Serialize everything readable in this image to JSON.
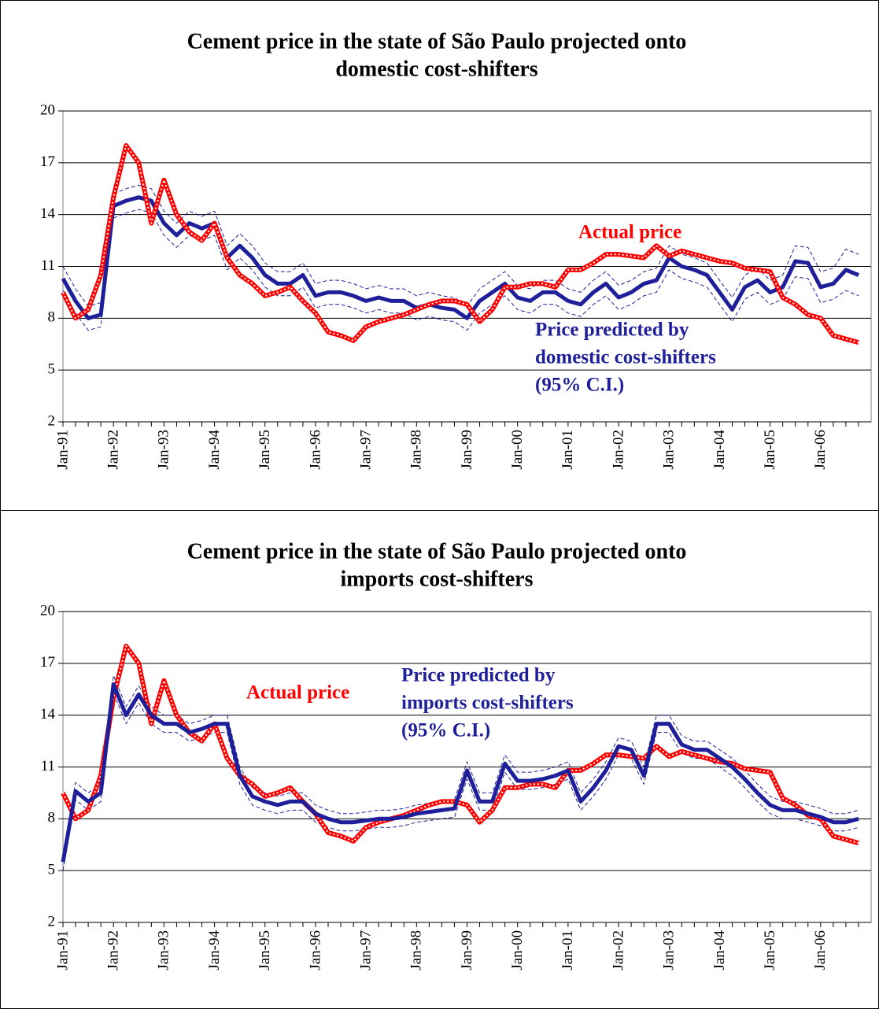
{
  "chart_data": [
    {
      "type": "line",
      "title": [
        "Cement price in the state of São Paulo projected onto",
        "domestic cost-shifters"
      ],
      "categories": [
        "Jan-91",
        null,
        null,
        null,
        "Jan-92",
        null,
        null,
        null,
        "Jan-93",
        null,
        null,
        null,
        "Jan-94",
        null,
        null,
        null,
        "Jan-95",
        null,
        null,
        null,
        "Jan-96",
        null,
        null,
        null,
        "Jan-97",
        null,
        null,
        null,
        "Jan-98",
        null,
        null,
        null,
        "Jan-99",
        null,
        null,
        null,
        "Jan-00",
        null,
        null,
        null,
        "Jan-01",
        null,
        null,
        null,
        "Jan-02",
        null,
        null,
        null,
        "Jan-03",
        null,
        null,
        null,
        "Jan-04",
        null,
        null,
        null,
        "Jan-05",
        null,
        null,
        null,
        "Jan-06",
        null,
        null,
        null
      ],
      "ylim": [
        2,
        20
      ],
      "yticks": [
        2,
        5,
        8,
        11,
        14,
        17,
        20
      ],
      "grid": true,
      "annotations": [
        {
          "lines": [
            "Actual price"
          ],
          "color": "#ff0000"
        },
        {
          "lines": [
            "Price predicted by",
            "domestic cost-shifters",
            "(95% C.I.)"
          ],
          "color": "#1f1f9a"
        }
      ],
      "series": [
        {
          "color": "#1f1f9a",
          "style": "dashed",
          "values": [
            11.0,
            9.7,
            8.7,
            8.9,
            15.2,
            15.5,
            15.7,
            15.5,
            14.2,
            13.5,
            14.2,
            13.9,
            14.2,
            12.2,
            12.9,
            12.2,
            11.2,
            10.7,
            10.7,
            11.2,
            10.0,
            10.2,
            10.2,
            10.0,
            9.7,
            9.9,
            9.7,
            9.7,
            9.3,
            9.5,
            9.3,
            9.2,
            8.7,
            9.7,
            10.2,
            10.7,
            9.9,
            9.7,
            10.2,
            10.2,
            9.7,
            9.5,
            10.2,
            10.7,
            9.9,
            10.2,
            10.7,
            10.9,
            12.2,
            11.7,
            11.5,
            11.2,
            10.2,
            9.2,
            10.5,
            10.9,
            10.2,
            10.5,
            12.2,
            12.1,
            10.7,
            10.9,
            12.0,
            11.7
          ]
        },
        {
          "color": "#1f1f9a",
          "style": "dashed",
          "values": [
            9.6,
            8.3,
            7.3,
            7.5,
            13.8,
            14.1,
            14.3,
            14.1,
            12.8,
            12.1,
            12.8,
            12.5,
            12.8,
            10.8,
            11.5,
            10.8,
            9.8,
            9.3,
            9.3,
            9.8,
            8.6,
            8.8,
            8.8,
            8.6,
            8.3,
            8.5,
            8.3,
            8.3,
            7.9,
            8.1,
            7.9,
            7.8,
            7.3,
            8.3,
            8.8,
            9.3,
            8.5,
            8.3,
            8.8,
            8.8,
            8.3,
            8.1,
            8.8,
            9.3,
            8.5,
            8.8,
            9.3,
            9.5,
            10.8,
            10.3,
            10.1,
            9.8,
            8.8,
            7.8,
            9.1,
            9.5,
            8.8,
            9.1,
            10.4,
            10.3,
            8.9,
            9.1,
            9.6,
            9.3
          ]
        },
        {
          "color": "#1f1f9a",
          "style": "thick",
          "values": [
            10.3,
            9.0,
            8.0,
            8.2,
            14.5,
            14.8,
            15.0,
            14.8,
            13.5,
            12.8,
            13.5,
            13.2,
            13.5,
            11.5,
            12.2,
            11.5,
            10.5,
            10.0,
            10.0,
            10.5,
            9.3,
            9.5,
            9.5,
            9.3,
            9.0,
            9.2,
            9.0,
            9.0,
            8.6,
            8.8,
            8.6,
            8.5,
            8.0,
            9.0,
            9.5,
            10.0,
            9.2,
            9.0,
            9.5,
            9.5,
            9.0,
            8.8,
            9.5,
            10.0,
            9.2,
            9.5,
            10.0,
            10.2,
            11.5,
            11.0,
            10.8,
            10.5,
            9.5,
            8.5,
            9.8,
            10.2,
            9.5,
            9.8,
            11.3,
            11.2,
            9.8,
            10.0,
            10.8,
            10.5
          ]
        },
        {
          "color": "#ff0000",
          "style": "beaded",
          "values": [
            9.5,
            8.0,
            8.5,
            10.5,
            15.0,
            18.0,
            17.0,
            13.5,
            16.0,
            14.0,
            13.0,
            12.5,
            13.5,
            11.5,
            10.5,
            10.0,
            9.3,
            9.5,
            9.8,
            9.0,
            8.3,
            7.2,
            7.0,
            6.7,
            7.5,
            7.8,
            8.0,
            8.2,
            8.5,
            8.8,
            9.0,
            9.0,
            8.8,
            7.8,
            8.5,
            9.8,
            9.8,
            10.0,
            10.0,
            9.8,
            10.8,
            10.8,
            11.2,
            11.7,
            11.7,
            11.6,
            11.5,
            12.2,
            11.6,
            11.9,
            11.7,
            11.5,
            11.3,
            11.2,
            10.9,
            10.8,
            10.7,
            9.2,
            8.8,
            8.2,
            8.0,
            7.0,
            6.8,
            6.6
          ]
        }
      ]
    },
    {
      "type": "line",
      "title": [
        "Cement price in the state of São Paulo projected onto",
        "imports cost-shifters"
      ],
      "categories": [
        "Jan-91",
        null,
        null,
        null,
        "Jan-92",
        null,
        null,
        null,
        "Jan-93",
        null,
        null,
        null,
        "Jan-94",
        null,
        null,
        null,
        "Jan-95",
        null,
        null,
        null,
        "Jan-96",
        null,
        null,
        null,
        "Jan-97",
        null,
        null,
        null,
        "Jan-98",
        null,
        null,
        null,
        "Jan-99",
        null,
        null,
        null,
        "Jan-00",
        null,
        null,
        null,
        "Jan-01",
        null,
        null,
        null,
        "Jan-02",
        null,
        null,
        null,
        "Jan-03",
        null,
        null,
        null,
        "Jan-04",
        null,
        null,
        null,
        "Jan-05",
        null,
        null,
        null,
        "Jan-06",
        null,
        null,
        null
      ],
      "ylim": [
        2,
        20
      ],
      "yticks": [
        2,
        5,
        8,
        11,
        14,
        17,
        20
      ],
      "grid": true,
      "annotations": [
        {
          "lines": [
            "Actual price"
          ],
          "color": "#ff0000"
        },
        {
          "lines": [
            "Price predicted by",
            "imports cost-shifters",
            "(95% C.I.)"
          ],
          "color": "#1f1f9a"
        }
      ],
      "series": [
        {
          "color": "#1f1f9a",
          "style": "dashed",
          "values": [
            6.0,
            10.1,
            9.5,
            10.0,
            16.3,
            14.5,
            15.7,
            14.5,
            14.0,
            14.0,
            13.5,
            13.7,
            14.0,
            14.0,
            11.0,
            9.8,
            9.5,
            9.3,
            9.5,
            9.5,
            8.8,
            8.5,
            8.3,
            8.3,
            8.4,
            8.5,
            8.5,
            8.6,
            8.8,
            8.9,
            9.0,
            9.1,
            11.3,
            9.5,
            9.5,
            11.7,
            10.7,
            10.7,
            10.8,
            11.0,
            11.3,
            9.5,
            10.3,
            11.3,
            12.7,
            12.5,
            11.0,
            14.0,
            14.0,
            12.8,
            12.5,
            12.5,
            12.0,
            11.5,
            10.8,
            10.0,
            9.3,
            9.0,
            9.0,
            8.8,
            8.6,
            8.3,
            8.3,
            8.5
          ]
        },
        {
          "color": "#1f1f9a",
          "style": "dashed",
          "values": [
            5.0,
            9.1,
            8.5,
            9.0,
            15.3,
            13.5,
            14.7,
            13.5,
            13.0,
            13.0,
            12.5,
            12.7,
            13.0,
            13.0,
            10.0,
            8.8,
            8.5,
            8.3,
            8.5,
            8.5,
            7.8,
            7.5,
            7.3,
            7.3,
            7.4,
            7.5,
            7.5,
            7.6,
            7.8,
            7.9,
            8.0,
            8.1,
            10.3,
            8.5,
            8.5,
            10.7,
            9.7,
            9.7,
            9.8,
            10.0,
            10.3,
            8.5,
            9.3,
            10.3,
            11.7,
            11.5,
            10.0,
            13.0,
            13.0,
            11.8,
            11.5,
            11.5,
            11.0,
            10.5,
            9.8,
            9.0,
            8.3,
            8.0,
            8.0,
            7.8,
            7.6,
            7.3,
            7.3,
            7.5
          ]
        },
        {
          "color": "#ff0000",
          "style": "beaded",
          "values": [
            9.5,
            8.0,
            8.5,
            10.5,
            15.0,
            18.0,
            17.0,
            13.5,
            16.0,
            14.0,
            13.0,
            12.5,
            13.5,
            11.5,
            10.5,
            10.0,
            9.3,
            9.5,
            9.8,
            9.0,
            8.3,
            7.2,
            7.0,
            6.7,
            7.5,
            7.8,
            8.0,
            8.2,
            8.5,
            8.8,
            9.0,
            9.0,
            8.8,
            7.8,
            8.5,
            9.8,
            9.8,
            10.0,
            10.0,
            9.8,
            10.8,
            10.8,
            11.2,
            11.7,
            11.7,
            11.6,
            11.5,
            12.2,
            11.6,
            11.9,
            11.7,
            11.5,
            11.3,
            11.2,
            10.9,
            10.8,
            10.7,
            9.2,
            8.8,
            8.2,
            8.0,
            7.0,
            6.8,
            6.6
          ]
        },
        {
          "color": "#1f1f9a",
          "style": "thick",
          "values": [
            5.5,
            9.6,
            9.0,
            9.5,
            15.8,
            14.0,
            15.2,
            14.0,
            13.5,
            13.5,
            13.0,
            13.2,
            13.5,
            13.5,
            10.5,
            9.3,
            9.0,
            8.8,
            9.0,
            9.0,
            8.3,
            8.0,
            7.8,
            7.8,
            7.9,
            8.0,
            8.0,
            8.1,
            8.3,
            8.4,
            8.5,
            8.6,
            10.8,
            9.0,
            9.0,
            11.2,
            10.2,
            10.2,
            10.3,
            10.5,
            10.8,
            9.0,
            9.8,
            10.8,
            12.2,
            12.0,
            10.5,
            13.5,
            13.5,
            12.3,
            12.0,
            12.0,
            11.5,
            11.0,
            10.3,
            9.5,
            8.8,
            8.5,
            8.5,
            8.3,
            8.1,
            7.8,
            7.8,
            8.0
          ]
        }
      ]
    }
  ]
}
